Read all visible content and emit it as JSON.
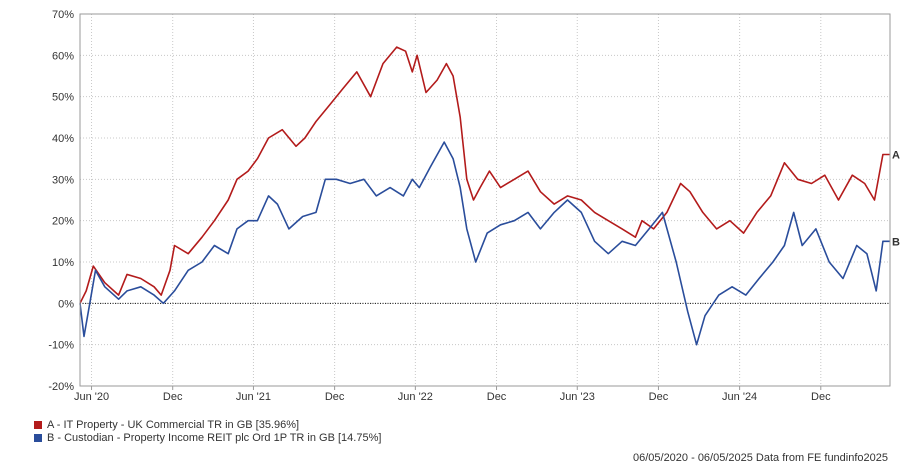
{
  "chart_data": {
    "type": "line",
    "ylim": [
      -20,
      70
    ],
    "yticks": [
      "70%",
      "60%",
      "50%",
      "40%",
      "30%",
      "20%",
      "10%",
      "0%",
      "-10%",
      "-20%"
    ],
    "ytick_values": [
      70,
      60,
      50,
      40,
      30,
      20,
      10,
      0,
      -10,
      -20
    ],
    "xticks": [
      "Jun '20",
      "Dec",
      "Jun '21",
      "Dec",
      "Jun '22",
      "Dec",
      "Jun '23",
      "Dec",
      "Jun '24",
      "Dec"
    ],
    "xtick_dates": [
      "2020-06-01",
      "2020-12-01",
      "2021-06-01",
      "2021-12-01",
      "2022-06-01",
      "2022-12-01",
      "2023-06-01",
      "2023-12-01",
      "2024-06-01",
      "2024-12-01"
    ],
    "x_range": [
      "2020-05-06",
      "2025-05-06"
    ],
    "grid": true,
    "zero_line": true,
    "series": [
      {
        "name": "A - IT Property - UK Commercial TR in GB [35.96%]",
        "end_label": "A",
        "color": "#b31b1b",
        "points": [
          [
            "2020-05-06",
            0
          ],
          [
            "2020-05-20",
            3
          ],
          [
            "2020-06-05",
            9
          ],
          [
            "2020-07-01",
            5
          ],
          [
            "2020-08-01",
            2
          ],
          [
            "2020-08-20",
            7
          ],
          [
            "2020-09-20",
            6
          ],
          [
            "2020-10-20",
            4
          ],
          [
            "2020-11-05",
            2
          ],
          [
            "2020-11-25",
            8
          ],
          [
            "2020-12-05",
            14
          ],
          [
            "2021-01-05",
            12
          ],
          [
            "2021-02-05",
            16
          ],
          [
            "2021-03-05",
            20
          ],
          [
            "2021-04-05",
            25
          ],
          [
            "2021-04-25",
            30
          ],
          [
            "2021-05-20",
            32
          ],
          [
            "2021-06-10",
            35
          ],
          [
            "2021-07-05",
            40
          ],
          [
            "2021-08-05",
            42
          ],
          [
            "2021-09-05",
            38
          ],
          [
            "2021-09-25",
            40
          ],
          [
            "2021-10-20",
            44
          ],
          [
            "2021-11-20",
            48
          ],
          [
            "2021-12-20",
            52
          ],
          [
            "2022-01-20",
            56
          ],
          [
            "2022-02-20",
            50
          ],
          [
            "2022-03-20",
            58
          ],
          [
            "2022-04-20",
            62
          ],
          [
            "2022-05-10",
            61
          ],
          [
            "2022-05-25",
            56
          ],
          [
            "2022-06-05",
            60
          ],
          [
            "2022-06-25",
            51
          ],
          [
            "2022-07-20",
            54
          ],
          [
            "2022-08-10",
            58
          ],
          [
            "2022-08-25",
            55
          ],
          [
            "2022-09-10",
            45
          ],
          [
            "2022-09-25",
            30
          ],
          [
            "2022-10-10",
            25
          ],
          [
            "2022-10-25",
            28
          ],
          [
            "2022-11-15",
            32
          ],
          [
            "2022-12-10",
            28
          ],
          [
            "2023-01-10",
            30
          ],
          [
            "2023-02-10",
            32
          ],
          [
            "2023-03-10",
            27
          ],
          [
            "2023-04-10",
            24
          ],
          [
            "2023-05-10",
            26
          ],
          [
            "2023-06-10",
            25
          ],
          [
            "2023-07-10",
            22
          ],
          [
            "2023-08-10",
            20
          ],
          [
            "2023-09-10",
            18
          ],
          [
            "2023-10-10",
            16
          ],
          [
            "2023-10-25",
            20
          ],
          [
            "2023-11-20",
            18
          ],
          [
            "2023-12-20",
            22
          ],
          [
            "2024-01-20",
            29
          ],
          [
            "2024-02-10",
            27
          ],
          [
            "2024-03-10",
            22
          ],
          [
            "2024-04-10",
            18
          ],
          [
            "2024-05-10",
            20
          ],
          [
            "2024-06-10",
            17
          ],
          [
            "2024-07-10",
            22
          ],
          [
            "2024-08-10",
            26
          ],
          [
            "2024-09-10",
            34
          ],
          [
            "2024-10-10",
            30
          ],
          [
            "2024-11-10",
            29
          ],
          [
            "2024-12-10",
            31
          ],
          [
            "2025-01-10",
            25
          ],
          [
            "2025-02-10",
            31
          ],
          [
            "2025-03-10",
            29
          ],
          [
            "2025-04-01",
            25
          ],
          [
            "2025-04-20",
            36
          ],
          [
            "2025-05-06",
            36
          ]
        ]
      },
      {
        "name": "B - Custodian - Property Income REIT plc Ord 1P TR in GB [14.75%]",
        "end_label": "B",
        "color": "#2a4d9b",
        "points": [
          [
            "2020-05-06",
            0
          ],
          [
            "2020-05-15",
            -8
          ],
          [
            "2020-05-28",
            0
          ],
          [
            "2020-06-10",
            8
          ],
          [
            "2020-07-01",
            4
          ],
          [
            "2020-08-01",
            1
          ],
          [
            "2020-08-20",
            3
          ],
          [
            "2020-09-20",
            4
          ],
          [
            "2020-10-20",
            2
          ],
          [
            "2020-11-10",
            0
          ],
          [
            "2020-12-05",
            3
          ],
          [
            "2021-01-05",
            8
          ],
          [
            "2021-02-05",
            10
          ],
          [
            "2021-03-05",
            14
          ],
          [
            "2021-04-05",
            12
          ],
          [
            "2021-04-25",
            18
          ],
          [
            "2021-05-20",
            20
          ],
          [
            "2021-06-10",
            20
          ],
          [
            "2021-07-05",
            26
          ],
          [
            "2021-07-25",
            24
          ],
          [
            "2021-08-20",
            18
          ],
          [
            "2021-09-20",
            21
          ],
          [
            "2021-10-20",
            22
          ],
          [
            "2021-11-10",
            30
          ],
          [
            "2021-12-05",
            30
          ],
          [
            "2022-01-05",
            29
          ],
          [
            "2022-02-05",
            30
          ],
          [
            "2022-03-05",
            26
          ],
          [
            "2022-04-05",
            28
          ],
          [
            "2022-05-05",
            26
          ],
          [
            "2022-05-25",
            30
          ],
          [
            "2022-06-10",
            28
          ],
          [
            "2022-07-05",
            33
          ],
          [
            "2022-08-05",
            39
          ],
          [
            "2022-08-25",
            35
          ],
          [
            "2022-09-10",
            28
          ],
          [
            "2022-09-25",
            18
          ],
          [
            "2022-10-15",
            10
          ],
          [
            "2022-11-10",
            17
          ],
          [
            "2022-12-10",
            19
          ],
          [
            "2023-01-10",
            20
          ],
          [
            "2023-02-10",
            22
          ],
          [
            "2023-03-10",
            18
          ],
          [
            "2023-04-10",
            22
          ],
          [
            "2023-05-10",
            25
          ],
          [
            "2023-06-10",
            22
          ],
          [
            "2023-07-10",
            15
          ],
          [
            "2023-08-10",
            12
          ],
          [
            "2023-09-10",
            15
          ],
          [
            "2023-10-10",
            14
          ],
          [
            "2023-11-10",
            18
          ],
          [
            "2023-12-10",
            22
          ],
          [
            "2024-01-10",
            10
          ],
          [
            "2024-02-05",
            -2
          ],
          [
            "2024-02-25",
            -10
          ],
          [
            "2024-03-15",
            -3
          ],
          [
            "2024-04-15",
            2
          ],
          [
            "2024-05-15",
            4
          ],
          [
            "2024-06-15",
            2
          ],
          [
            "2024-07-15",
            6
          ],
          [
            "2024-08-15",
            10
          ],
          [
            "2024-09-10",
            14
          ],
          [
            "2024-10-01",
            22
          ],
          [
            "2024-10-20",
            14
          ],
          [
            "2024-11-20",
            18
          ],
          [
            "2024-12-20",
            10
          ],
          [
            "2025-01-20",
            6
          ],
          [
            "2025-02-20",
            14
          ],
          [
            "2025-03-15",
            12
          ],
          [
            "2025-04-05",
            3
          ],
          [
            "2025-04-20",
            15
          ],
          [
            "2025-05-06",
            15
          ]
        ]
      }
    ]
  },
  "footer": "06/05/2020 - 06/05/2025 Data from FE fundinfo2025"
}
